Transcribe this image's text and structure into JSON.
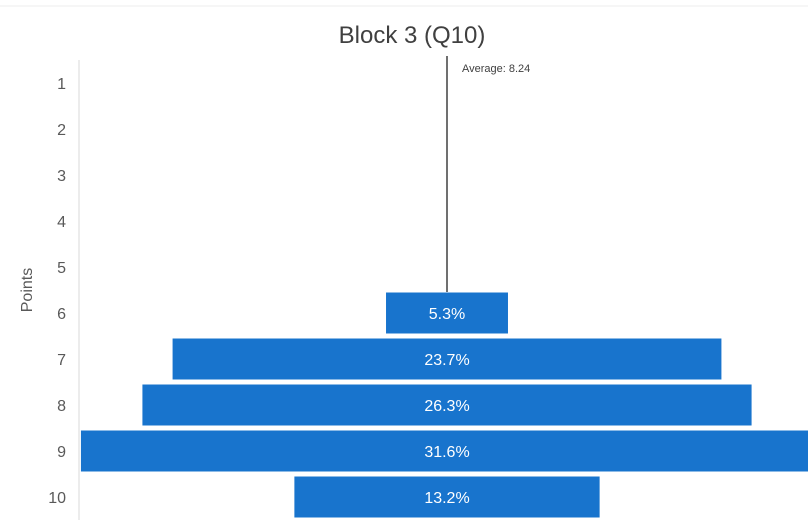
{
  "chart_data": {
    "type": "bar",
    "orientation": "horizontal-funnel",
    "title": "Block 3 (Q10)",
    "ylabel": "Points",
    "xlabel": "",
    "categories": [
      "1",
      "2",
      "3",
      "4",
      "5",
      "6",
      "7",
      "8",
      "9",
      "10"
    ],
    "values": [
      0,
      0,
      0,
      0,
      0,
      5.3,
      23.7,
      26.3,
      31.6,
      13.2
    ],
    "data_labels": [
      "",
      "",
      "",
      "",
      "",
      "5.3%",
      "23.7%",
      "26.3%",
      "31.6%",
      "13.2%"
    ],
    "average": {
      "label": "Average: 8.24",
      "value": 8.24
    },
    "bar_color": "#1874cd",
    "grid": false,
    "legend": "none"
  }
}
